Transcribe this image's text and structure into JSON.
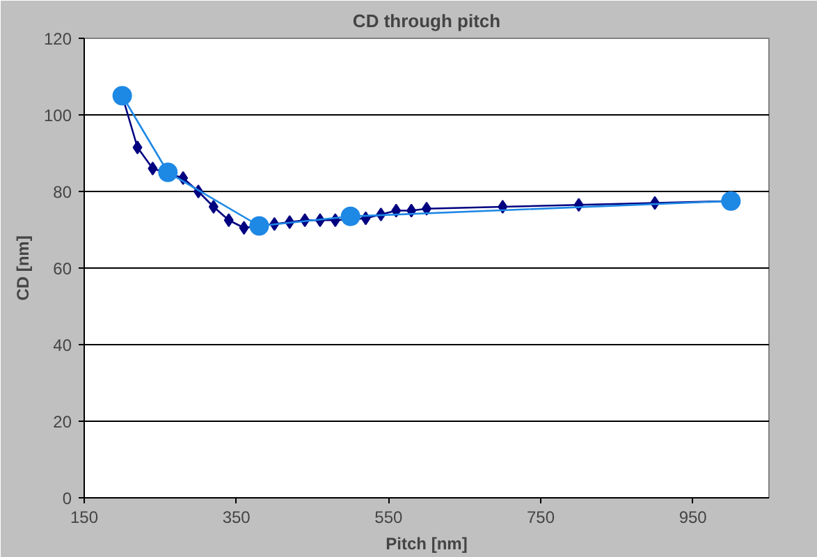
{
  "chart_data": {
    "type": "line",
    "title": "CD through pitch",
    "xlabel": "Pitch [nm]",
    "ylabel": "CD [nm]",
    "xlim": [
      150,
      1050
    ],
    "xticks": [
      150,
      350,
      550,
      750,
      950
    ],
    "ylim": [
      0,
      120
    ],
    "yticks": [
      0,
      20,
      40,
      60,
      80,
      100,
      120
    ],
    "grid": "y",
    "series": [
      {
        "color": "#000080",
        "marker": "diamond",
        "x": [
          200,
          220,
          240,
          280,
          300,
          320,
          340,
          360,
          400,
          420,
          440,
          460,
          480,
          520,
          540,
          560,
          580,
          600,
          700,
          800,
          900,
          1000
        ],
        "values": [
          105,
          91.5,
          86,
          83.5,
          80,
          76,
          72.5,
          70.5,
          71.5,
          72,
          72.5,
          72.5,
          72.5,
          73,
          74,
          75,
          75,
          75.5,
          76,
          76.5,
          77,
          77.5
        ]
      },
      {
        "color": "#1e88e5",
        "marker": "circle",
        "x": [
          200,
          260,
          380,
          500,
          1000
        ],
        "values": [
          105,
          85,
          71,
          73.5,
          77.5
        ]
      }
    ]
  }
}
